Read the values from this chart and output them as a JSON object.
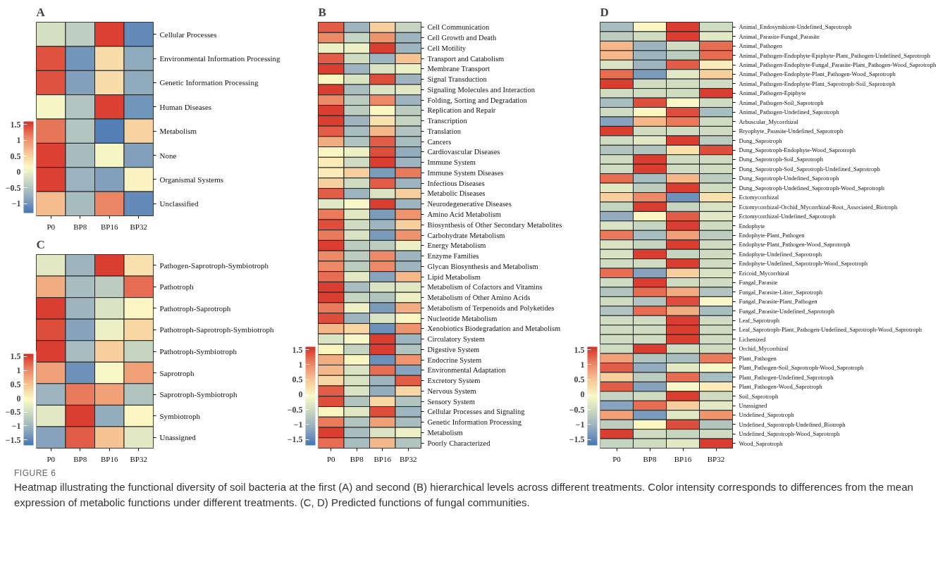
{
  "chart_data": [
    {
      "type": "heatmap",
      "title": "A",
      "categories": [
        "P0",
        "BP8",
        "BP16",
        "BP32"
      ],
      "clim": [
        -1.3,
        1.6
      ],
      "cticks": [
        -1,
        -0.5,
        0,
        0.5,
        1,
        1.5
      ],
      "y_categories": [
        "Cellular Processes",
        "Environmental Information Processing",
        "Genetic Information Processing",
        "Human Diseases",
        "Metabolism",
        "None",
        "Organismal Systems",
        "Unclassified"
      ],
      "cells": [
        [
          -0.2,
          -0.4,
          1.5,
          -1.1
        ],
        [
          1.4,
          -1.0,
          0.4,
          -0.8
        ],
        [
          1.4,
          -0.9,
          0.4,
          -0.8
        ],
        [
          0.1,
          -0.5,
          1.5,
          -1.0
        ],
        [
          1.2,
          -0.5,
          -1.2,
          0.5
        ],
        [
          1.5,
          -0.6,
          0.1,
          -0.9
        ],
        [
          1.5,
          -0.7,
          -0.9,
          0.2
        ],
        [
          0.7,
          -0.6,
          1.1,
          -1.1
        ]
      ]
    },
    {
      "type": "heatmap",
      "title": "B",
      "categories": [
        "P0",
        "BP8",
        "BP16",
        "BP32"
      ],
      "clim": [
        -1.7,
        1.6
      ],
      "cticks": [
        -1.5,
        -1,
        -0.5,
        0,
        0.5,
        1,
        1.5
      ],
      "y_categories": [
        "Cell Communication",
        "Cell Growth and Death",
        "Cell Motility",
        "Transport and Catabolism",
        "Membrane Transport",
        "Signal Transduction",
        "Signaling Molecules and Interaction",
        "Folding, Sorting and Degradation",
        "Replication and Repair",
        "Transcription",
        "Translation",
        "Cancers",
        "Cardiovascular Diseases",
        "Immune System",
        "Immune System Diseases",
        "Infectious Diseases",
        "Metabolic Diseases",
        "Neurodegenerative Diseases",
        "Amino Acid Metabolism",
        "Biosynthesis of Other Secondary Metabolites",
        "Carbohydrate Metabolism",
        "Energy Metabolism",
        "Enzyme Families",
        "Glycan Biosynthesis and Metabolism",
        "Lipid Metabolism",
        "Metabolism of Cofactors and Vitamins",
        "Metabolism of Other Amino Acids",
        "Metabolism of Terpenoids and Polyketides",
        "Nucleotide Metabolism",
        "Xenobiotics Biodegradation and Metabolism",
        "Circulatory System",
        "Digestive System",
        "Endocrine System",
        "Environmental Adaptation",
        "Excretory System",
        "Nervous System",
        "Sensory System",
        "Cellular Processes and Signaling",
        "Genetic Information Processing",
        "Metabolism",
        "Poorly Characterized"
      ],
      "cells": [
        [
          1.3,
          -1.0,
          0.4,
          -0.6
        ],
        [
          1.0,
          -0.6,
          0.9,
          -1.0
        ],
        [
          -0.2,
          -0.2,
          1.5,
          -1.0
        ],
        [
          1.3,
          -0.5,
          -1.0,
          0.5
        ],
        [
          1.5,
          -1.0,
          -0.4,
          -0.2
        ],
        [
          0.0,
          -0.4,
          1.4,
          -1.0
        ],
        [
          1.5,
          -0.9,
          -0.4,
          -0.3
        ],
        [
          1.0,
          -0.7,
          1.0,
          -1.0
        ],
        [
          1.5,
          -0.7,
          0.0,
          -0.7
        ],
        [
          1.5,
          -1.0,
          0.2,
          -0.6
        ],
        [
          1.3,
          -0.9,
          0.6,
          -0.8
        ],
        [
          0.7,
          -0.8,
          1.3,
          -0.9
        ],
        [
          0.0,
          -0.2,
          1.4,
          -1.1
        ],
        [
          0.1,
          -0.5,
          1.5,
          -1.0
        ],
        [
          0.1,
          0.4,
          -1.3,
          1.1
        ],
        [
          0.4,
          -0.5,
          1.3,
          -1.0
        ],
        [
          1.3,
          -1.0,
          -0.4,
          0.4
        ],
        [
          -0.3,
          -0.1,
          1.5,
          -1.0
        ],
        [
          1.1,
          -0.3,
          -1.3,
          0.9
        ],
        [
          1.4,
          -0.5,
          -1.0,
          0.4
        ],
        [
          1.1,
          -0.4,
          -1.3,
          0.9
        ],
        [
          1.5,
          -0.7,
          -0.7,
          -0.2
        ],
        [
          1.0,
          -0.7,
          1.0,
          -1.0
        ],
        [
          1.0,
          -0.7,
          1.0,
          -1.0
        ],
        [
          1.2,
          -0.3,
          -1.2,
          0.6
        ],
        [
          1.5,
          -0.9,
          -0.4,
          -0.3
        ],
        [
          1.5,
          -0.6,
          -0.8,
          -0.2
        ],
        [
          1.1,
          -0.2,
          -1.3,
          0.7
        ],
        [
          1.4,
          -1.0,
          -0.4,
          0.0
        ],
        [
          0.6,
          0.3,
          -1.4,
          0.9
        ],
        [
          -0.4,
          -0.1,
          1.5,
          -1.0
        ],
        [
          0.0,
          -0.6,
          1.5,
          -0.8
        ],
        [
          0.7,
          0.0,
          -1.4,
          0.9
        ],
        [
          0.6,
          -0.4,
          1.2,
          -1.2
        ],
        [
          0.3,
          -0.4,
          -1.0,
          1.3
        ],
        [
          1.3,
          -0.4,
          -1.1,
          0.3
        ],
        [
          1.4,
          -0.8,
          0.3,
          -0.8
        ],
        [
          0.0,
          -0.3,
          1.4,
          -1.0
        ],
        [
          1.1,
          -0.8,
          0.8,
          -0.9
        ],
        [
          1.5,
          -0.9,
          -0.4,
          -0.2
        ],
        [
          1.2,
          -0.9,
          0.6,
          -0.8
        ]
      ]
    },
    {
      "type": "heatmap",
      "title": "C",
      "categories": [
        "P0",
        "BP8",
        "BP16",
        "BP32"
      ],
      "clim": [
        -1.7,
        1.6
      ],
      "cticks": [
        -1.5,
        -1,
        -0.5,
        0,
        0.5,
        1,
        1.5
      ],
      "y_categories": [
        "Pathogen-Saprotroph-Symbiotroph",
        "Pathotroph",
        "Pathotroph-Saprotroph",
        "Pathotroph-Saprotroph-Symbiotroph",
        "Pathotroph-Symbiotroph",
        "Saprotroph",
        "Saprotroph-Symbiotroph",
        "Symbiotroph",
        "Unassigned"
      ],
      "cells": [
        [
          -0.3,
          -1.0,
          1.5,
          0.2
        ],
        [
          0.7,
          -0.9,
          -0.7,
          1.2
        ],
        [
          1.5,
          -1.0,
          -0.4,
          0.0
        ],
        [
          1.4,
          -1.2,
          -0.2,
          0.3
        ],
        [
          1.5,
          -0.9,
          0.4,
          -0.6
        ],
        [
          0.8,
          -1.4,
          -0.1,
          0.8
        ],
        [
          -1.0,
          1.1,
          0.8,
          -0.8
        ],
        [
          -0.3,
          1.5,
          -1.1,
          0.0
        ],
        [
          -1.2,
          1.3,
          0.5,
          -0.3
        ]
      ]
    },
    {
      "type": "heatmap",
      "title": "D",
      "categories": [
        "P0",
        "BP8",
        "BP16",
        "BP32"
      ],
      "clim": [
        -1.7,
        1.6
      ],
      "cticks": [
        -1.5,
        -1,
        -0.5,
        0,
        0.5,
        1,
        1.5
      ],
      "y_categories": [
        "Animal_Endosymbiont-Undefined_Saprotroph",
        "Animal_Parasite-Fungal_Parasite",
        "Animal_Pathogen",
        "Animal_Pathogen-Endophyte-Epiphyte-Plant_Pathogen-Undefined_Saprotroph",
        "Animal_Pathogen-Endophyte-Fungal_Parasite-Plant_Pathogen-Wood_Saprotroph",
        "Animal_Pathogen-Endophyte-Plant_Pathogen-Wood_Saprotroph",
        "Animal_Pathogen-Endophyte-Plant_Saprotroph-Soil_Saprotroph",
        "Animal_Pathogen-Epiphyte",
        "Animal_Pathogen-Soil_Saprotroph",
        "Animal_Pathogen-Undefined_Saprotroph",
        "Arbuscular_Mycorrhizal",
        "Bryophyte_Parasite-Undefined_Saprotroph",
        "Dung_Saprotroph",
        "Dung_Saprotroph-Endophyte-Wood_Saprotroph",
        "Dung_Saprotroph-Soil_Saprotroph",
        "Dung_Saprotroph-Soil_Saprotroph-Undefined_Saprotroph",
        "Dung_Saprotroph-Undefined_Saprotroph",
        "Dung_Saprotroph-Undefined_Saprotroph-Wood_Saprotroph",
        "Ectomycorrhizal",
        "Ectomycorrhizal-Orchid_Mycorrhizal-Root_Associated_Biotroph",
        "Ectomycorrhizal-Undefined_Saprotroph",
        "Endophyte",
        "Endophyte-Plant_Pathogen",
        "Endophyte-Plant_Pathogen-Wood_Saprotroph",
        "Endophyte-Undefined_Saprotroph",
        "Endophyte-Undefined_Saprotroph-Wood_Saprotroph",
        "Ericoid_Mycorrhizal",
        "Fungal_Parasite",
        "Fungal_Parasite-Litter_Saprotroph",
        "Fungal_Parasite-Plant_Pathogen",
        "Fungal_Parasite-Undefined_Saprotroph",
        "Leaf_Saprotroph",
        "Leaf_Saprotroph-Plant_Pathogen-Undefined_Saprotroph-Wood_Saprotroph",
        "Lichenized",
        "Orchid_Mycorrhizal",
        "Plant_Pathogen",
        "Plant_Pathogen-Soil_Saprotroph-Wood_Saprotroph",
        "Plant_Pathogen-Undefined_Saprotroph",
        "Plant_Pathogen-Wood_Saprotroph",
        "Soil_Saprotroph",
        "Unassigned",
        "Undefined_Saprotroph",
        "Undefined_Saprotroph-Undefined_Biotroph",
        "Undefined_Saprotroph-Wood_Saprotroph",
        "Wood_Saprotroph"
      ],
      "cells": [
        [
          -0.9,
          0.0,
          1.5,
          -0.5
        ],
        [
          -0.7,
          -0.5,
          1.5,
          -0.3
        ],
        [
          0.6,
          -1.0,
          -0.5,
          1.2
        ],
        [
          0.6,
          -1.0,
          -0.7,
          1.2
        ],
        [
          -0.4,
          -1.0,
          1.3,
          0.1
        ],
        [
          1.2,
          -1.3,
          -0.3,
          0.4
        ],
        [
          1.5,
          -0.5,
          -0.5,
          -0.5
        ],
        [
          -0.5,
          -0.5,
          -0.5,
          1.5
        ],
        [
          -0.9,
          1.4,
          -0.1,
          -0.5
        ],
        [
          -0.5,
          0.0,
          1.4,
          -0.9
        ],
        [
          -1.2,
          0.6,
          1.1,
          -0.5
        ],
        [
          1.5,
          -0.5,
          -0.5,
          -0.5
        ],
        [
          -0.5,
          -0.3,
          1.5,
          -0.7
        ],
        [
          -0.8,
          -0.8,
          0.2,
          1.4
        ],
        [
          -0.5,
          1.5,
          -0.5,
          -0.5
        ],
        [
          -0.5,
          1.5,
          -0.5,
          -0.5
        ],
        [
          1.2,
          -0.9,
          0.6,
          -0.7
        ],
        [
          -0.3,
          -0.7,
          1.5,
          -0.5
        ],
        [
          0.4,
          1.0,
          -1.4,
          0.2
        ],
        [
          -0.6,
          1.5,
          -0.6,
          -0.4
        ],
        [
          -1.1,
          0.0,
          1.3,
          -0.3
        ],
        [
          -0.4,
          -0.6,
          1.5,
          -0.5
        ],
        [
          1.1,
          -0.9,
          0.8,
          -0.7
        ],
        [
          -0.4,
          -0.6,
          1.5,
          -0.5
        ],
        [
          -0.4,
          1.5,
          -0.6,
          -0.5
        ],
        [
          -0.5,
          -0.5,
          1.5,
          -0.5
        ],
        [
          1.2,
          -1.2,
          0.4,
          -0.4
        ],
        [
          -0.5,
          1.5,
          -0.5,
          -0.5
        ],
        [
          -0.8,
          1.2,
          0.7,
          -0.8
        ],
        [
          -0.5,
          -0.8,
          1.4,
          -0.1
        ],
        [
          -0.8,
          1.2,
          0.7,
          -0.9
        ],
        [
          -0.5,
          -0.5,
          1.5,
          -0.5
        ],
        [
          -0.5,
          -0.5,
          1.5,
          -0.5
        ],
        [
          -0.5,
          -0.5,
          1.5,
          -0.5
        ],
        [
          -0.5,
          1.5,
          -0.5,
          -0.5
        ],
        [
          0.8,
          -0.8,
          -0.9,
          1.1
        ],
        [
          1.3,
          -1.1,
          -0.3,
          -0.1
        ],
        [
          0.4,
          -0.7,
          1.2,
          -0.9
        ],
        [
          1.3,
          -1.2,
          -0.1,
          0.1
        ],
        [
          -0.6,
          -0.5,
          1.5,
          -0.5
        ],
        [
          -1.2,
          1.2,
          0.4,
          -0.3
        ],
        [
          0.8,
          -1.3,
          -0.3,
          0.9
        ],
        [
          -0.7,
          0.0,
          1.4,
          -0.8
        ],
        [
          1.5,
          -0.5,
          -0.6,
          -0.5
        ],
        [
          -0.6,
          -0.5,
          -0.3,
          1.5
        ]
      ],
      "annotations": [
        "FIGURE 6",
        "Heatmap illustrating the functional diversity of soil bacteria at the first (A) and second (B) hierarchical levels across different treatments. Color intensity corresponds to differences from the mean expression of metabolic functions under different treatments. (C, D) Predicted functions of fungal communities."
      ]
    }
  ]
}
